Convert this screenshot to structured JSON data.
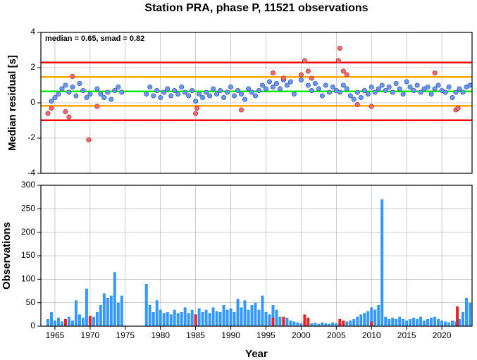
{
  "chart_data": [
    {
      "type": "scatter",
      "title": "Station PRA, phase P, 11521 observations",
      "annotation": "median = 0.65, smad = 0.82",
      "ylabel": "Median residual [s]",
      "xlim": [
        1963,
        2024.3
      ],
      "ylim": [
        -4,
        4
      ],
      "yticks": [
        -4,
        -2,
        0,
        2,
        4
      ],
      "grid": true,
      "reference_lines": [
        {
          "value": 2.29,
          "color": "#ff0000"
        },
        {
          "value": 1.47,
          "color": "#ffa500"
        },
        {
          "value": 0.65,
          "color": "#00ee00"
        },
        {
          "value": -0.17,
          "color": "#ffa500"
        },
        {
          "value": -0.99,
          "color": "#ff0000"
        }
      ],
      "series": [
        {
          "color": "#6699ff",
          "x": [
            1964.5,
            1965,
            1965.5,
            1966,
            1966.5,
            1967,
            1967.5,
            1968,
            1968.5,
            1969,
            1969.5,
            1970,
            1971,
            1971.5,
            1972,
            1972.5,
            1973,
            1973.5,
            1974,
            1974.5,
            1978,
            1978.5,
            1979,
            1979.5,
            1980,
            1980.5,
            1981,
            1981.5,
            1982,
            1982.5,
            1983,
            1983.5,
            1984,
            1984.5,
            1985,
            1985.5,
            1986,
            1986.5,
            1987,
            1987.5,
            1988,
            1988.5,
            1989,
            1989.5,
            1990,
            1990.5,
            1991,
            1991.5,
            1992,
            1992.5,
            1993,
            1993.5,
            1994,
            1994.5,
            1995,
            1995.5,
            1996,
            1996.5,
            1997,
            1997.5,
            1998,
            1998.5,
            1999,
            2000,
            2001,
            2001.5,
            2002,
            2002.5,
            2003,
            2003.5,
            2004,
            2004.5,
            2005,
            2005.5,
            2006,
            2006.5,
            2007,
            2007.5,
            2008,
            2008.5,
            2009,
            2009.5,
            2010,
            2010.5,
            2011,
            2011.5,
            2012,
            2012.5,
            2013,
            2013.5,
            2014,
            2014.5,
            2015,
            2015.5,
            2016,
            2016.5,
            2017,
            2017.5,
            2018,
            2018.5,
            2019,
            2019.5,
            2020,
            2020.5,
            2021,
            2021.5,
            2022,
            2022.5,
            2023,
            2023.5,
            2024
          ],
          "values": [
            0.1,
            0.3,
            0.5,
            0.8,
            1.0,
            0.6,
            0.9,
            0.4,
            1.1,
            0.7,
            0.3,
            0.5,
            0.8,
            0.5,
            0.3,
            0.6,
            0.2,
            0.7,
            0.9,
            0.6,
            0.5,
            0.9,
            0.4,
            0.7,
            0.3,
            0.6,
            0.8,
            0.4,
            0.7,
            0.5,
            0.9,
            0.6,
            0.4,
            0.7,
            0.1,
            0.5,
            0.3,
            0.6,
            0.4,
            0.8,
            0.5,
            0.7,
            0.3,
            0.6,
            0.9,
            0.4,
            0.7,
            0.5,
            0.2,
            0.8,
            0.6,
            0.4,
            0.7,
            1.0,
            0.8,
            1.2,
            0.9,
            1.1,
            0.8,
            1.3,
            1.0,
            1.2,
            0.5,
            1.3,
            1.0,
            0.7,
            1.1,
            0.8,
            0.4,
            1.0,
            0.6,
            0.9,
            0.7,
            0.6,
            1.0,
            0.8,
            0.4,
            0.2,
            0.6,
            0.3,
            0.7,
            0.5,
            0.9,
            0.6,
            0.8,
            1.0,
            0.7,
            0.9,
            0.6,
            1.1,
            0.8,
            0.5,
            1.2,
            0.9,
            0.7,
            1.0,
            0.6,
            0.8,
            0.9,
            0.5,
            0.8,
            1.0,
            0.7,
            0.6,
            0.9,
            0.3,
            0.6,
            0.8,
            0.6,
            0.9,
            1.0
          ]
        },
        {
          "color": "#ff6666",
          "x": [
            1964,
            1964.5,
            1966.5,
            1967,
            1967.5,
            1969.8,
            1971,
            1985,
            1985.2,
            1991.5,
            1996,
            1997.5,
            2000,
            2000.5,
            2001,
            2001.5,
            2005.5,
            2005.3,
            2006,
            2006.5,
            2008,
            2010,
            2019,
            2022,
            2022.3
          ],
          "values": [
            -0.6,
            -0.3,
            -0.5,
            -0.8,
            1.5,
            -2.1,
            -0.2,
            -0.6,
            -0.3,
            -0.4,
            1.7,
            1.4,
            1.6,
            2.4,
            1.8,
            1.4,
            3.1,
            2.4,
            1.8,
            1.6,
            -0.1,
            -0.2,
            1.7,
            -0.4,
            -0.3
          ]
        }
      ]
    },
    {
      "type": "bar",
      "ylabel": "Observations",
      "xlabel": "Year",
      "xlim": [
        1963,
        2024.3
      ],
      "xticks": [
        1965,
        1970,
        1975,
        1980,
        1985,
        1990,
        1995,
        2000,
        2005,
        2010,
        2015,
        2020
      ],
      "ylim": [
        0,
        300
      ],
      "yticks": [
        0,
        50,
        100,
        150,
        200,
        250,
        300
      ],
      "grid": true,
      "series": [
        {
          "color": "#3399ff",
          "x": [
            1964,
            1964.5,
            1965,
            1965.5,
            1966,
            1966.5,
            1967,
            1967.5,
            1968,
            1968.5,
            1969,
            1969.5,
            1970,
            1970.5,
            1971,
            1971.5,
            1972,
            1972.5,
            1973,
            1973.5,
            1974,
            1974.5,
            1978,
            1978.5,
            1979,
            1979.5,
            1980,
            1980.5,
            1981,
            1981.5,
            1982,
            1982.5,
            1983,
            1983.5,
            1984,
            1984.5,
            1985,
            1985.5,
            1986,
            1986.5,
            1987,
            1987.5,
            1988,
            1988.5,
            1989,
            1989.5,
            1990,
            1990.5,
            1991,
            1991.5,
            1992,
            1992.5,
            1993,
            1993.5,
            1994,
            1994.5,
            1995,
            1995.5,
            1996,
            1996.5,
            1997,
            1997.5,
            1998,
            1998.5,
            1999,
            1999.5,
            2000,
            2000.5,
            2001,
            2001.5,
            2002,
            2002.5,
            2003,
            2003.5,
            2004,
            2004.5,
            2005,
            2005.5,
            2006,
            2006.5,
            2007,
            2007.5,
            2008,
            2008.5,
            2009,
            2009.5,
            2010,
            2010.5,
            2011,
            2011.5,
            2012,
            2012.5,
            2013,
            2013.5,
            2014,
            2014.5,
            2015,
            2015.5,
            2016,
            2016.5,
            2017,
            2017.5,
            2018,
            2018.5,
            2019,
            2019.5,
            2020,
            2020.5,
            2021,
            2021.5,
            2022,
            2022.5,
            2023,
            2023.5,
            2024
          ],
          "values": [
            15,
            30,
            12,
            18,
            10,
            15,
            20,
            12,
            55,
            25,
            18,
            80,
            15,
            20,
            30,
            45,
            70,
            60,
            65,
            115,
            50,
            65,
            90,
            45,
            30,
            55,
            35,
            28,
            30,
            25,
            35,
            28,
            30,
            40,
            28,
            35,
            25,
            38,
            30,
            35,
            28,
            40,
            32,
            30,
            45,
            35,
            38,
            30,
            58,
            40,
            55,
            35,
            45,
            50,
            35,
            65,
            30,
            25,
            45,
            35,
            20,
            15,
            18,
            12,
            10,
            8,
            6,
            8,
            5,
            6,
            7,
            5,
            8,
            6,
            5,
            8,
            6,
            5,
            8,
            10,
            12,
            15,
            20,
            25,
            28,
            32,
            40,
            35,
            45,
            270,
            20,
            15,
            18,
            15,
            20,
            15,
            12,
            15,
            18,
            15,
            20,
            12,
            15,
            18,
            20,
            15,
            12,
            10,
            8,
            12,
            10,
            15,
            30,
            60,
            50
          ]
        },
        {
          "color": "#ee2222",
          "x": [
            1966.5,
            1970,
            1985,
            1996,
            1997.5,
            2000.5,
            2001,
            2005.5,
            2006,
            2010,
            2022.2
          ],
          "values": [
            15,
            22,
            25,
            18,
            20,
            25,
            18,
            15,
            12,
            10,
            42
          ]
        }
      ]
    }
  ]
}
